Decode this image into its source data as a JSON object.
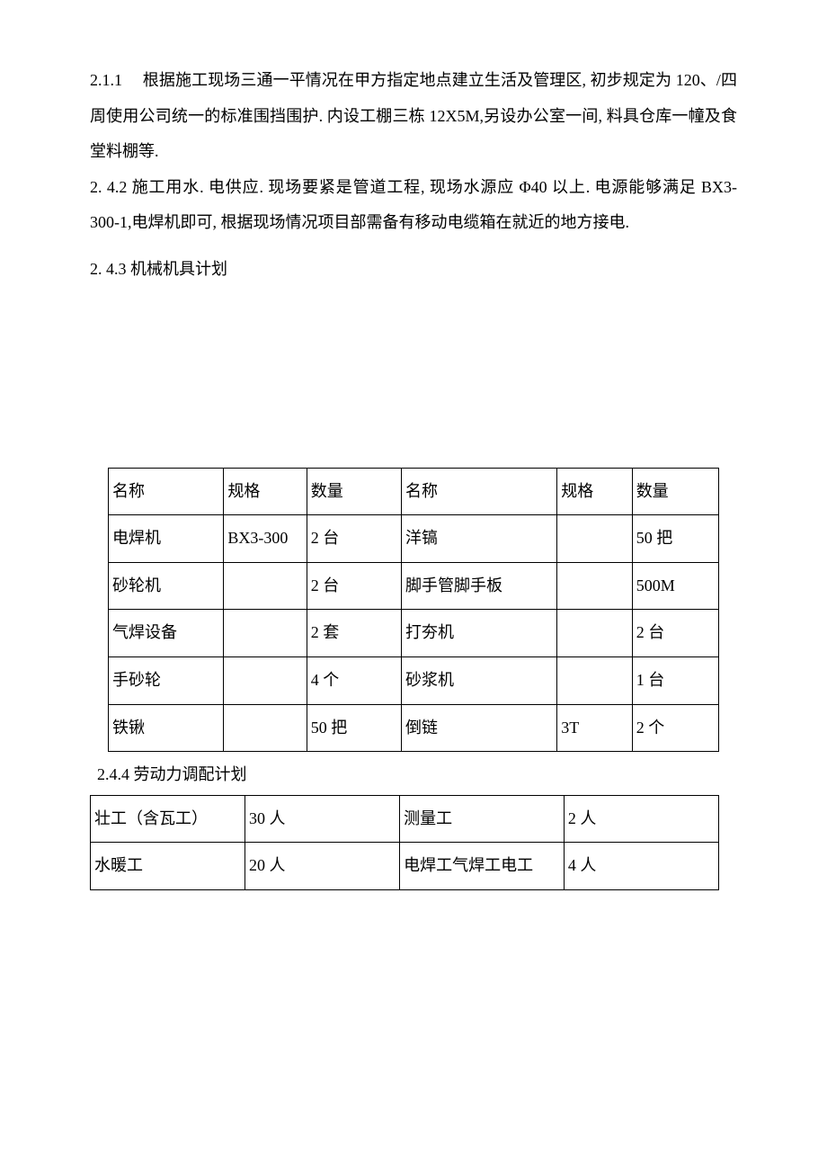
{
  "paragraphs": {
    "p1": "2.1.1　 根据施工现场三通一平情况在甲方指定地点建立生活及管理区, 初步规定为 120、/四周使用公司统一的标准围挡围护. 内设工棚三栋 12X5M,另设办公室一间, 料具仓库一幢及食堂料棚等.",
    "p2": "2.  4.2 施工用水. 电供应. 现场要紧是管道工程, 现场水源应 Φ40 以上. 电源能够满足 BX3-300-1,电焊机即可, 根据现场情况项目部需备有移动电缆箱在就近的地方接电.",
    "p3": "2.  4.3 机械机具计划"
  },
  "table1": {
    "headers": {
      "name": "名称",
      "spec": "规格",
      "qty": "数量",
      "name2": "名称",
      "spec2": "规格",
      "qty2": "数量"
    },
    "rows": [
      {
        "name": "电焊机",
        "spec": "BX3-300",
        "qty": "2 台",
        "name2": "洋镐",
        "spec2": "",
        "qty2": "50 把"
      },
      {
        "name": "砂轮机",
        "spec": "",
        "qty": "2 台",
        "name2": "脚手管脚手板",
        "spec2": "",
        "qty2": "500M"
      },
      {
        "name": "气焊设备",
        "spec": "",
        "qty": "2 套",
        "name2": "打夯机",
        "spec2": "",
        "qty2": "2 台"
      },
      {
        "name": "手砂轮",
        "spec": "",
        "qty": "4 个",
        "name2": "砂浆机",
        "spec2": "",
        "qty2": "1 台"
      },
      {
        "name": "铁锹",
        "spec": "",
        "qty": "50 把",
        "name2": "倒链",
        "spec2": "3T",
        "qty2": "2 个"
      }
    ]
  },
  "subheading": "2.4.4 劳动力调配计划",
  "table2": {
    "rows": [
      {
        "c1": "壮工（含瓦工）",
        "c2": "30 人",
        "c3": "测量工",
        "c4": "2 人"
      },
      {
        "c1": "水暖工",
        "c2": "20 人",
        "c3": "电焊工气焊工电工",
        "c4": "4 人"
      }
    ]
  }
}
